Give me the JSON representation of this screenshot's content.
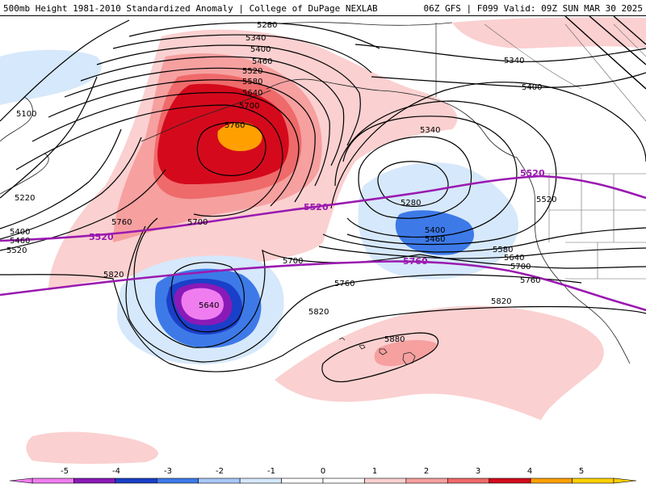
{
  "header": {
    "title_left": "500mb Height 1981-2010 Standardized Anomaly | College of DuPage NEXLAB",
    "title_right": "06Z GFS | F099 Valid: 09Z SUN MAR 30 2025"
  },
  "contour_labels": {
    "c5280_top": "5280",
    "c5340_top": "5340",
    "c5400_top": "5400",
    "c5460_top": "5460",
    "c5520_top": "5520",
    "c5580_top": "5580",
    "c5640_top": "5640",
    "c5700_top": "5700",
    "c5760_center": "5760",
    "c5100_left": "5100",
    "c5220_left": "5220",
    "c5400_left": "5400",
    "c5460_left": "5460",
    "c5520_left": "5520",
    "c5760_left": "5760",
    "c5700_mid": "5700",
    "c5820_left": "5820",
    "c5700_east": "5700",
    "c5760_east": "5760",
    "c5820_east": "5820",
    "c5640_low": "5640",
    "c5880": "5880",
    "c5340_east": "5340",
    "c5280_east": "5280",
    "c5400_east": "5400",
    "c5460_east": "5460",
    "c5580_east": "5580",
    "c5640_east": "5640",
    "c5700_east2": "5700",
    "c5760_east2": "5760",
    "c5820_east2": "5820",
    "c5340_ne": "5340",
    "c5400_ne": "5400",
    "c5520_ne": "5520"
  },
  "climo_labels": {
    "p5520_left": "5520",
    "p5520_mid": "5520",
    "p5520_right": "5520",
    "p5760_mid": "5760"
  },
  "colorbar": {
    "ticks": [
      "-5",
      "-4",
      "-3",
      "-2",
      "-1",
      "0",
      "1",
      "2",
      "3",
      "4",
      "5"
    ],
    "colors": [
      "#f07df0",
      "#8a1ab8",
      "#1a3fc8",
      "#3d7ae8",
      "#a8c8f8",
      "#d6e8fb",
      "#ffffff",
      "#ffffff",
      "#fbd0d0",
      "#f6a0a0",
      "#ef6a6a",
      "#d40a1c",
      "#ffa000",
      "#ffd000"
    ]
  }
}
